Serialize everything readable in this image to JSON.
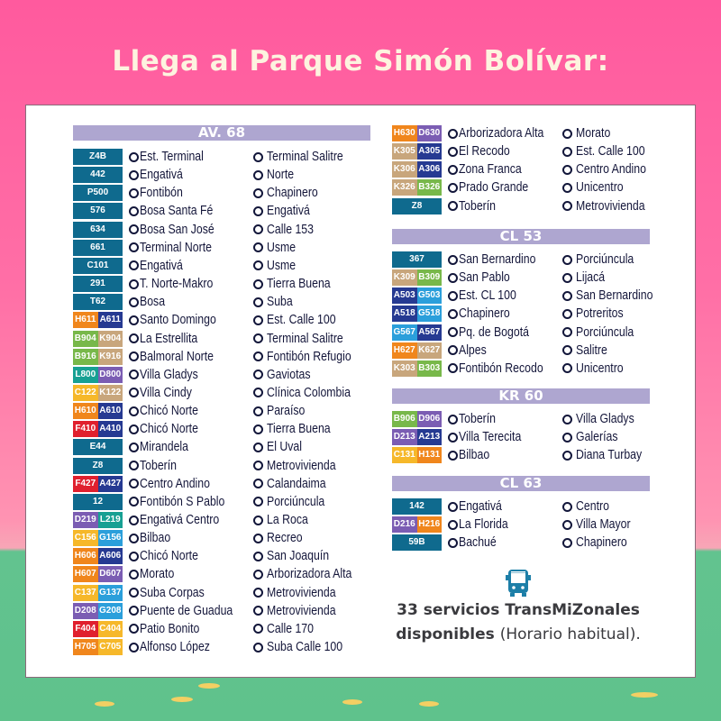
{
  "title": "Llega al Parque Simón Bolívar:",
  "colors": {
    "teal": "#0f6a8e",
    "orange": "#f0861c",
    "navy": "#263a92",
    "green": "#78b84a",
    "tan": "#c8a67c",
    "aqua": "#17a093",
    "purple": "#7b5db3",
    "yellow": "#f6b82a",
    "red": "#e0202e",
    "sky": "#2b9fdb",
    "header": "#aea6d0",
    "ring": "#12163a",
    "pink": "#ff5a9e",
    "grass": "#5fc28c"
  },
  "sections": [
    {
      "title": "AV. 68",
      "rows": [
        {
          "codes": [
            [
              "Z4B",
              "teal"
            ]
          ],
          "from": "Est. Terminal",
          "to": "Terminal Salitre"
        },
        {
          "codes": [
            [
              "442",
              "teal"
            ]
          ],
          "from": "Engativá",
          "to": "Norte"
        },
        {
          "codes": [
            [
              "P500",
              "teal"
            ]
          ],
          "from": "Fontibón",
          "to": "Chapinero"
        },
        {
          "codes": [
            [
              "576",
              "teal"
            ]
          ],
          "from": "Bosa Santa Fé",
          "to": "Engativá"
        },
        {
          "codes": [
            [
              "634",
              "teal"
            ]
          ],
          "from": "Bosa San José",
          "to": "Calle 153"
        },
        {
          "codes": [
            [
              "661",
              "teal"
            ]
          ],
          "from": "Terminal Norte",
          "to": "Usme"
        },
        {
          "codes": [
            [
              "C101",
              "teal"
            ]
          ],
          "from": "Engativá",
          "to": "Usme"
        },
        {
          "codes": [
            [
              "291",
              "teal"
            ]
          ],
          "from": "T. Norte-Makro",
          "to": "Tierra Buena"
        },
        {
          "codes": [
            [
              "T62",
              "teal"
            ]
          ],
          "from": "Bosa",
          "to": "Suba"
        },
        {
          "codes": [
            [
              "H611",
              "orange"
            ],
            [
              "A611",
              "navy"
            ]
          ],
          "from": "Santo Domingo",
          "to": "Est. Calle 100"
        },
        {
          "codes": [
            [
              "B904",
              "green"
            ],
            [
              "K904",
              "tan"
            ]
          ],
          "from": "La Estrellita",
          "to": "Terminal Salitre"
        },
        {
          "codes": [
            [
              "B916",
              "green"
            ],
            [
              "K916",
              "tan"
            ]
          ],
          "from": "Balmoral Norte",
          "to": "Fontibón Refugio"
        },
        {
          "codes": [
            [
              "L800",
              "aqua"
            ],
            [
              "D800",
              "purple"
            ]
          ],
          "from": "Villa Gladys",
          "to": "Gaviotas"
        },
        {
          "codes": [
            [
              "C122",
              "yellow"
            ],
            [
              "K122",
              "tan"
            ]
          ],
          "from": "Villa Cindy",
          "to": "Clínica Colombia"
        },
        {
          "codes": [
            [
              "H610",
              "orange"
            ],
            [
              "A610",
              "navy"
            ]
          ],
          "from": "Chicó Norte",
          "to": "Paraíso"
        },
        {
          "codes": [
            [
              "F410",
              "red"
            ],
            [
              "A410",
              "navy"
            ]
          ],
          "from": "Chicó Norte",
          "to": "Tierra Buena"
        },
        {
          "codes": [
            [
              "E44",
              "teal"
            ]
          ],
          "from": "Mirandela",
          "to": "El Uval"
        },
        {
          "codes": [
            [
              "Z8",
              "teal"
            ]
          ],
          "from": "Toberín",
          "to": "Metrovivienda"
        },
        {
          "codes": [
            [
              "F427",
              "red"
            ],
            [
              "A427",
              "navy"
            ]
          ],
          "from": "Centro Andino",
          "to": "Calandaima"
        },
        {
          "codes": [
            [
              "12",
              "teal"
            ]
          ],
          "from": "Fontibón S Pablo",
          "to": "Porciúncula"
        },
        {
          "codes": [
            [
              "D219",
              "purple"
            ],
            [
              "L219",
              "aqua"
            ]
          ],
          "from": "Engativá Centro",
          "to": "La Roca"
        },
        {
          "codes": [
            [
              "C156",
              "yellow"
            ],
            [
              "G156",
              "sky"
            ]
          ],
          "from": "Bilbao",
          "to": "Recreo"
        },
        {
          "codes": [
            [
              "H606",
              "orange"
            ],
            [
              "A606",
              "navy"
            ]
          ],
          "from": "Chicó Norte",
          "to": "San Joaquín"
        },
        {
          "codes": [
            [
              "H607",
              "orange"
            ],
            [
              "D607",
              "purple"
            ]
          ],
          "from": "Morato",
          "to": "Arborizadora Alta"
        },
        {
          "codes": [
            [
              "C137",
              "yellow"
            ],
            [
              "G137",
              "sky"
            ]
          ],
          "from": "Suba Corpas",
          "to": "Metrovivienda"
        },
        {
          "codes": [
            [
              "D208",
              "purple"
            ],
            [
              "G208",
              "sky"
            ]
          ],
          "from": "Puente de Guadua",
          "to": "Metrovivienda"
        },
        {
          "codes": [
            [
              "F404",
              "red"
            ],
            [
              "C404",
              "yellow"
            ]
          ],
          "from": "Patio Bonito",
          "to": "Calle 170"
        },
        {
          "codes": [
            [
              "H705",
              "orange"
            ],
            [
              "C705",
              "yellow"
            ]
          ],
          "from": "Alfonso López",
          "to": "Suba Calle 100"
        }
      ]
    },
    {
      "title": "",
      "rows": [
        {
          "codes": [
            [
              "H630",
              "orange"
            ],
            [
              "D630",
              "purple"
            ]
          ],
          "from": "Arborizadora Alta",
          "to": "Morato"
        },
        {
          "codes": [
            [
              "K305",
              "tan"
            ],
            [
              "A305",
              "navy"
            ]
          ],
          "from": "El Recodo",
          "to": "Est. Calle 100"
        },
        {
          "codes": [
            [
              "K306",
              "tan"
            ],
            [
              "A306",
              "navy"
            ]
          ],
          "from": "Zona Franca",
          "to": "Centro Andino"
        },
        {
          "codes": [
            [
              "K326",
              "tan"
            ],
            [
              "B326",
              "green"
            ]
          ],
          "from": "Prado Grande",
          "to": "Unicentro"
        },
        {
          "codes": [
            [
              "Z8",
              "teal"
            ]
          ],
          "from": "Toberín",
          "to": "Metrovivienda"
        }
      ]
    },
    {
      "title": "CL 53",
      "rows": [
        {
          "codes": [
            [
              "367",
              "teal"
            ]
          ],
          "from": "San Bernardino",
          "to": "Porciúncula"
        },
        {
          "codes": [
            [
              "K309",
              "tan"
            ],
            [
              "B309",
              "green"
            ]
          ],
          "from": "San Pablo",
          "to": "Lijacá"
        },
        {
          "codes": [
            [
              "A503",
              "navy"
            ],
            [
              "G503",
              "sky"
            ]
          ],
          "from": "Est. CL 100",
          "to": "San Bernardino"
        },
        {
          "codes": [
            [
              "A518",
              "navy"
            ],
            [
              "G518",
              "sky"
            ]
          ],
          "from": "Chapinero",
          "to": "Potreritos"
        },
        {
          "codes": [
            [
              "G567",
              "sky"
            ],
            [
              "A567",
              "navy"
            ]
          ],
          "from": "Pq. de Bogotá",
          "to": "Porciúncula"
        },
        {
          "codes": [
            [
              "H627",
              "orange"
            ],
            [
              "K627",
              "tan"
            ]
          ],
          "from": "Alpes",
          "to": "Salitre"
        },
        {
          "codes": [
            [
              "K303",
              "tan"
            ],
            [
              "B303",
              "green"
            ]
          ],
          "from": "Fontibón Recodo",
          "to": "Unicentro"
        }
      ]
    },
    {
      "title": "KR 60",
      "rows": [
        {
          "codes": [
            [
              "B906",
              "green"
            ],
            [
              "D906",
              "purple"
            ]
          ],
          "from": "Toberín",
          "to": "Villa Gladys"
        },
        {
          "codes": [
            [
              "D213",
              "purple"
            ],
            [
              "A213",
              "navy"
            ]
          ],
          "from": "Villa Terecita",
          "to": "Galerías"
        },
        {
          "codes": [
            [
              "C131",
              "yellow"
            ],
            [
              "H131",
              "orange"
            ]
          ],
          "from": "Bilbao",
          "to": "Diana Turbay"
        }
      ]
    },
    {
      "title": "CL 63",
      "rows": [
        {
          "codes": [
            [
              "142",
              "teal"
            ]
          ],
          "from": "Engativá",
          "to": "Centro"
        },
        {
          "codes": [
            [
              "D216",
              "purple"
            ],
            [
              "H216",
              "orange"
            ]
          ],
          "from": "La Florida",
          "to": "Villa Mayor"
        },
        {
          "codes": [
            [
              "59B",
              "teal"
            ]
          ],
          "from": "Bachué",
          "to": "Chapinero"
        }
      ]
    }
  ],
  "footer": {
    "icon": "bus-icon",
    "line1": "33 servicios TransMiZonales",
    "line2_bold": "disponibles",
    "line2_light": "(Horario habitual)."
  }
}
